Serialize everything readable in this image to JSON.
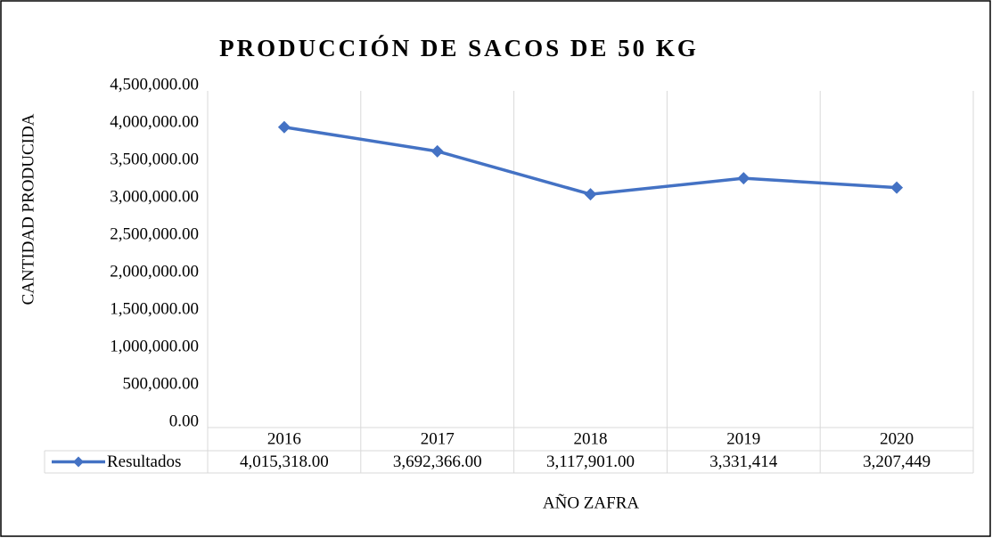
{
  "chart_data": {
    "type": "line",
    "title": "PRODUCCIÓN DE SACOS DE 50 KG",
    "y_label": "CANTIDAD PRODUCIDA",
    "x_label": "AÑO ZAFRA",
    "categories": [
      "2016",
      "2017",
      "2018",
      "2019",
      "2020"
    ],
    "series": [
      {
        "name": "Resultados",
        "color": "#4472c4",
        "values": [
          4015318,
          3692366,
          3117901,
          3331414,
          3207449
        ],
        "value_labels": [
          "4,015,318.00",
          "3,692,366.00",
          "3,117,901.00",
          "3,331,414",
          "3,207,449"
        ]
      }
    ],
    "ylim": [
      0,
      4500000
    ],
    "yticks": [
      {
        "value": 0,
        "label": "0.00"
      },
      {
        "value": 500000,
        "label": "500,000.00"
      },
      {
        "value": 1000000,
        "label": "1,000,000.00"
      },
      {
        "value": 1500000,
        "label": "1,500,000.00"
      },
      {
        "value": 2000000,
        "label": "2,000,000.00"
      },
      {
        "value": 2500000,
        "label": "2,500,000.00"
      },
      {
        "value": 3000000,
        "label": "3,000,000.00"
      },
      {
        "value": 3500000,
        "label": "3,500,000.00"
      },
      {
        "value": 4000000,
        "label": "4,000,000.00"
      },
      {
        "value": 4500000,
        "label": "4,500,000.00"
      }
    ],
    "grid": "vertical"
  }
}
